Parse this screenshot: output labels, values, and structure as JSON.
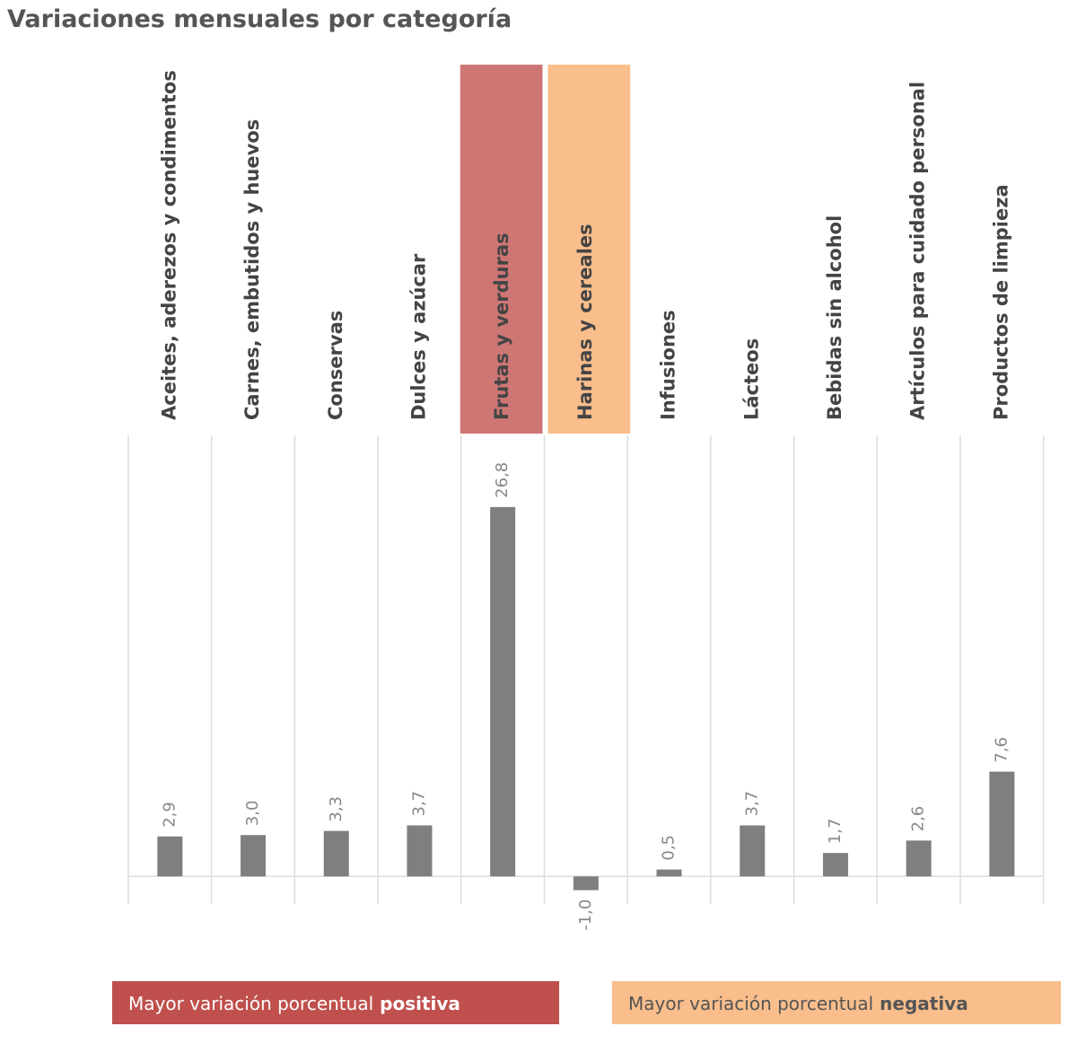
{
  "chart_data": {
    "type": "bar",
    "title": "Variaciones mensuales por categoría",
    "categories": [
      "Aceites, aderezos y condimentos",
      "Carnes, embutidos y huevos",
      "Conservas",
      "Dulces y azúcar",
      "Frutas y verduras",
      "Harinas y cereales",
      "Infusiones",
      "Lácteos",
      "Bebidas sin alcohol",
      "Artículos para cuidado personal",
      "Productos de limpieza"
    ],
    "values": [
      2.9,
      3.0,
      3.3,
      3.7,
      26.8,
      -1.0,
      0.5,
      3.7,
      1.7,
      2.6,
      7.6
    ],
    "value_labels": [
      "2,9",
      "3,0",
      "3,3",
      "3,7",
      "26,8",
      "-1,0",
      "0,5",
      "3,7",
      "1,7",
      "2,6",
      "7,6"
    ],
    "color": "#7f7f7f",
    "ylim": [
      -2,
      32
    ],
    "legend": [
      {
        "text": "Mayor variación porcentual",
        "emphasis": "positiva",
        "color": "#c0504d",
        "highlight": "Frutas y verduras"
      },
      {
        "text": "Mayor variación porcentual",
        "emphasis": "negativa",
        "color": "#f9be8c",
        "highlight": "Harinas y cereales"
      }
    ]
  }
}
